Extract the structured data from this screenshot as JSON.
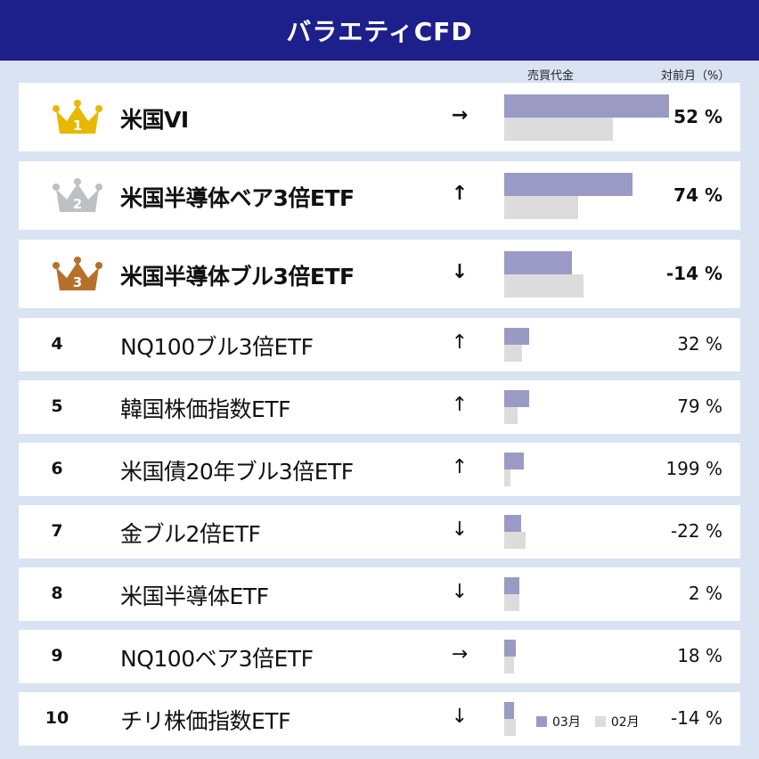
{
  "title": "バラエティCFD",
  "column_headers": {
    "volume": "売買代金",
    "mom": "対前月（%）"
  },
  "legend": {
    "current": "03月",
    "previous": "02月"
  },
  "colors": {
    "header_bg": "#1d1f8a",
    "current_bar": "#9a9ac4",
    "previous_bar": "#dcdcdc",
    "gold": "#e8b800",
    "silver": "#bfc0c4",
    "bronze": "#b5702a"
  },
  "chart_data": {
    "type": "bar",
    "orientation": "horizontal",
    "categories": [
      "米国VI",
      "米国半導体ベア3倍ETF",
      "米国半導体ブル3倍ETF",
      "NQ100ブル3倍ETF",
      "韓国株価指数ETF",
      "米国債20年ブル3倍ETF",
      "金ブル2倍ETF",
      "米国半導体ETF",
      "NQ100ベア3倍ETF",
      "チリ株価指数ETF"
    ],
    "series": [
      {
        "name": "03月",
        "values": [
          100,
          78,
          41,
          15,
          15,
          12,
          10,
          9,
          7,
          6
        ]
      },
      {
        "name": "02月",
        "values": [
          66,
          45,
          48,
          11,
          8,
          4,
          13,
          9,
          6,
          7
        ]
      }
    ],
    "xlim": [
      0,
      100
    ],
    "grid": false
  },
  "rows": [
    {
      "rank": "1",
      "crown": "gold",
      "name": "米国VI",
      "arrow": "→",
      "pct": "52 %",
      "top": true
    },
    {
      "rank": "2",
      "crown": "silver",
      "name": "米国半導体ベア3倍ETF",
      "arrow": "↑",
      "pct": "74 %",
      "top": true
    },
    {
      "rank": "3",
      "crown": "bronze",
      "name": "米国半導体ブル3倍ETF",
      "arrow": "↓",
      "pct": "-14 %",
      "top": true
    },
    {
      "rank": "4",
      "crown": "",
      "name": "NQ100ブル3倍ETF",
      "arrow": "↑",
      "pct": "32 %",
      "top": false
    },
    {
      "rank": "5",
      "crown": "",
      "name": "韓国株価指数ETF",
      "arrow": "↑",
      "pct": "79 %",
      "top": false
    },
    {
      "rank": "6",
      "crown": "",
      "name": "米国債20年ブル3倍ETF",
      "arrow": "↑",
      "pct": "199 %",
      "top": false
    },
    {
      "rank": "7",
      "crown": "",
      "name": "金ブル2倍ETF",
      "arrow": "↓",
      "pct": "-22 %",
      "top": false
    },
    {
      "rank": "8",
      "crown": "",
      "name": "米国半導体ETF",
      "arrow": "↓",
      "pct": "2 %",
      "top": false
    },
    {
      "rank": "9",
      "crown": "",
      "name": "NQ100ベア3倍ETF",
      "arrow": "→",
      "pct": "18 %",
      "top": false
    },
    {
      "rank": "10",
      "crown": "",
      "name": "チリ株価指数ETF",
      "arrow": "↓",
      "pct": "-14 %",
      "top": false
    }
  ]
}
